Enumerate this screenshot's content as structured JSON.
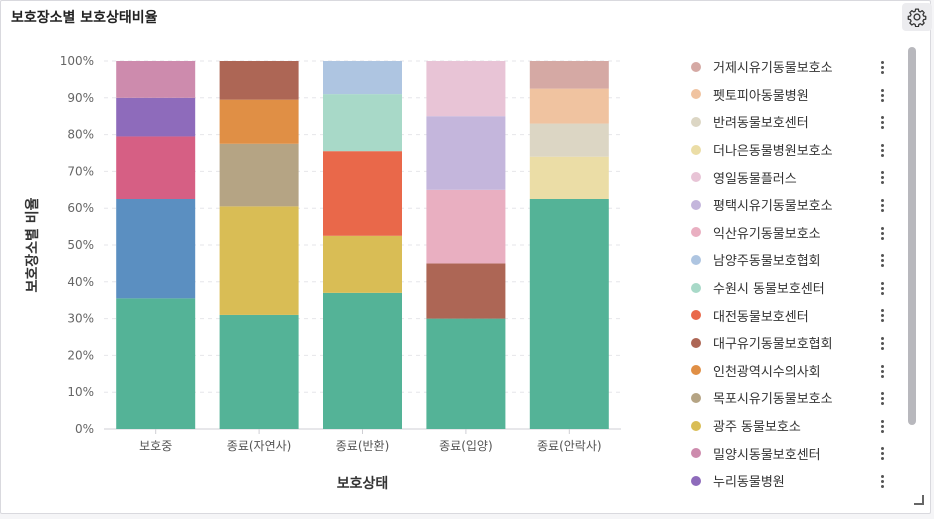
{
  "panel": {
    "title": "보호장소별 보호상태비율",
    "settings_icon": "gear-icon"
  },
  "colors": {
    "거제시유기동물보호소": "#d5a9a4",
    "펫토피아동물병원": "#f0c3a0",
    "반려동물보호센터": "#dcd6c4",
    "더나은동물병원보호소": "#ebdda6",
    "영일동물플러스": "#e8c4d6",
    "평택시유기동물보호소": "#c4b6dc",
    "익산유기동물보호소": "#e9afc1",
    "남양주동물보호협회": "#aec5e1",
    "수원시 동물보호센터": "#a8d9c8",
    "대전동물보호센터": "#e9684a",
    "대구유기동물보호협회": "#ad6655",
    "인천광역시수의사회": "#e08f45",
    "목포시유기동물보호소": "#b5a484",
    "광주 동물보호소": "#d9bd55",
    "밀양시동물보호센터": "#cd8bad",
    "누리동물병원": "#8e6bbb",
    "주황": "#d65f84",
    "청색": "#5b8fc1",
    "녹색": "#54b397"
  },
  "chart_data": {
    "type": "bar",
    "stacked": true,
    "normalized": true,
    "categories": [
      "보호중",
      "종료(자연사)",
      "종료(반환)",
      "종료(입양)",
      "종료(안락사)"
    ],
    "xlabel": "보호상태",
    "ylabel": "보호장소별 비율",
    "ylim": [
      0,
      100
    ],
    "y_ticks": [
      "0%",
      "10%",
      "20%",
      "30%",
      "40%",
      "50%",
      "60%",
      "70%",
      "80%",
      "90%",
      "100%"
    ],
    "grid": true,
    "legend": "right",
    "stacks": [
      [
        {
          "color": "#54b397",
          "value": 35.5
        },
        {
          "color": "#5b8fc1",
          "value": 27
        },
        {
          "color": "#d65f84",
          "value": 17
        },
        {
          "color": "#8e6bbb",
          "value": 10.5
        },
        {
          "color": "#cd8bad",
          "value": 10
        }
      ],
      [
        {
          "color": "#54b397",
          "value": 31
        },
        {
          "color": "#d9bd55",
          "value": 29.5
        },
        {
          "color": "#b5a484",
          "value": 17
        },
        {
          "color": "#e08f45",
          "value": 12
        },
        {
          "color": "#ad6655",
          "value": 10.5
        }
      ],
      [
        {
          "color": "#54b397",
          "value": 37
        },
        {
          "color": "#d9bd55",
          "value": 15.5
        },
        {
          "color": "#e9684a",
          "value": 23
        },
        {
          "color": "#a8d9c8",
          "value": 15.5
        },
        {
          "color": "#aec5e1",
          "value": 9
        }
      ],
      [
        {
          "color": "#54b397",
          "value": 30
        },
        {
          "color": "#ad6655",
          "value": 15
        },
        {
          "color": "#e9afc1",
          "value": 20
        },
        {
          "color": "#c4b6dc",
          "value": 20
        },
        {
          "color": "#e8c4d6",
          "value": 15
        }
      ],
      [
        {
          "color": "#54b397",
          "value": 62.5
        },
        {
          "color": "#ebdda6",
          "value": 11.5
        },
        {
          "color": "#dcd6c4",
          "value": 9
        },
        {
          "color": "#f0c3a0",
          "value": 9.5
        },
        {
          "color": "#d5a9a4",
          "value": 7.5
        }
      ]
    ]
  },
  "legend": {
    "items": [
      {
        "label": "거제시유기동물보호소",
        "color": "#d5a9a4"
      },
      {
        "label": "펫토피아동물병원",
        "color": "#f0c3a0"
      },
      {
        "label": "반려동물보호센터",
        "color": "#dcd6c4"
      },
      {
        "label": "더나은동물병원보호소",
        "color": "#ebdda6"
      },
      {
        "label": "영일동물플러스",
        "color": "#e8c4d6"
      },
      {
        "label": "평택시유기동물보호소",
        "color": "#c4b6dc"
      },
      {
        "label": "익산유기동물보호소",
        "color": "#e9afc1"
      },
      {
        "label": "남양주동물보호협회",
        "color": "#aec5e1"
      },
      {
        "label": "수원시 동물보호센터",
        "color": "#a8d9c8"
      },
      {
        "label": "대전동물보호센터",
        "color": "#e9684a"
      },
      {
        "label": "대구유기동물보호협회",
        "color": "#ad6655"
      },
      {
        "label": "인천광역시수의사회",
        "color": "#e08f45"
      },
      {
        "label": "목포시유기동물보호소",
        "color": "#b5a484"
      },
      {
        "label": "광주 동물보호소",
        "color": "#d9bd55"
      },
      {
        "label": "밀양시동물보호센터",
        "color": "#cd8bad"
      },
      {
        "label": "누리동물병원",
        "color": "#8e6bbb"
      }
    ]
  }
}
